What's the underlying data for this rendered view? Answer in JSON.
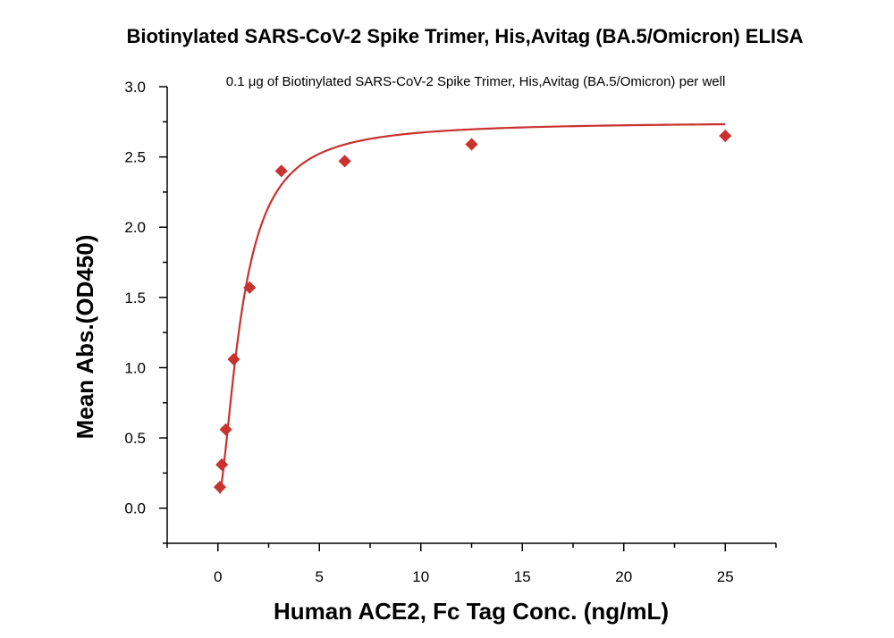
{
  "chart_data": {
    "type": "scatter",
    "title": "Biotinylated SARS-CoV-2 Spike Trimer, His,Avitag (BA.5/Omicron) ELISA",
    "annotation": "0.1 μg of Biotinylated SARS-CoV-2 Spike Trimer, His,Avitag (BA.5/Omicron) per well",
    "xlabel": "Human ACE2, Fc Tag Conc. (ng/mL)",
    "ylabel": "Mean Abs.(OD450)",
    "xlim": [
      -2.5,
      27.5
    ],
    "ylim": [
      -0.25,
      3.0
    ],
    "xticks": [
      0,
      5,
      10,
      15,
      20,
      25
    ],
    "yticks": [
      0.0,
      0.5,
      1.0,
      1.5,
      2.0,
      2.5,
      3.0
    ],
    "xtick_labels": [
      "0",
      "5",
      "10",
      "15",
      "20",
      "25"
    ],
    "ytick_labels": [
      "0.0",
      "0.5",
      "1.0",
      "1.5",
      "2.0",
      "2.5",
      "3.0"
    ],
    "grid": false,
    "series": [
      {
        "marker": "diamond",
        "color": "#c8322f",
        "fit": "four-parameter logistic",
        "x": [
          0.098,
          0.195,
          0.391,
          0.781,
          1.563,
          3.125,
          6.25,
          12.5,
          25
        ],
        "y": [
          0.15,
          0.31,
          0.56,
          1.06,
          1.57,
          2.4,
          2.47,
          2.59,
          2.65
        ]
      }
    ]
  }
}
